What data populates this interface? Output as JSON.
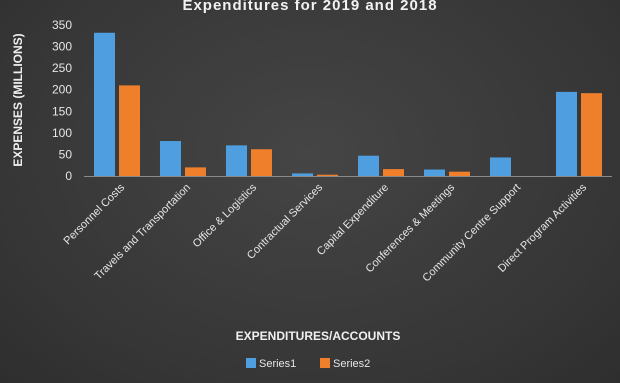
{
  "chart_data": {
    "type": "bar",
    "title": "Expenditures for 2019 and 2018",
    "xlabel": "EXPENDITURES/ACCOUNTS",
    "ylabel": "EXPENSES (MILLIONS)",
    "ylim": [
      0,
      350
    ],
    "yticks": [
      0,
      50,
      100,
      150,
      200,
      250,
      300,
      350
    ],
    "grid": false,
    "legend_position": "bottom",
    "categories": [
      "Personnel Costs",
      "Travels and Transportation",
      "Office & Logistics",
      "Contractual Services",
      "Capital Expenditure",
      "Conferences & Meetings",
      "Community Centre Support",
      "Direct Program Activities"
    ],
    "series": [
      {
        "name": "Series1",
        "color": "#4f9fe0",
        "values": [
          332,
          81,
          71,
          6,
          47,
          15,
          43,
          195
        ]
      },
      {
        "name": "Series2",
        "color": "#f07f2c",
        "values": [
          210,
          20,
          62,
          3,
          16,
          10,
          0,
          192
        ]
      }
    ]
  }
}
